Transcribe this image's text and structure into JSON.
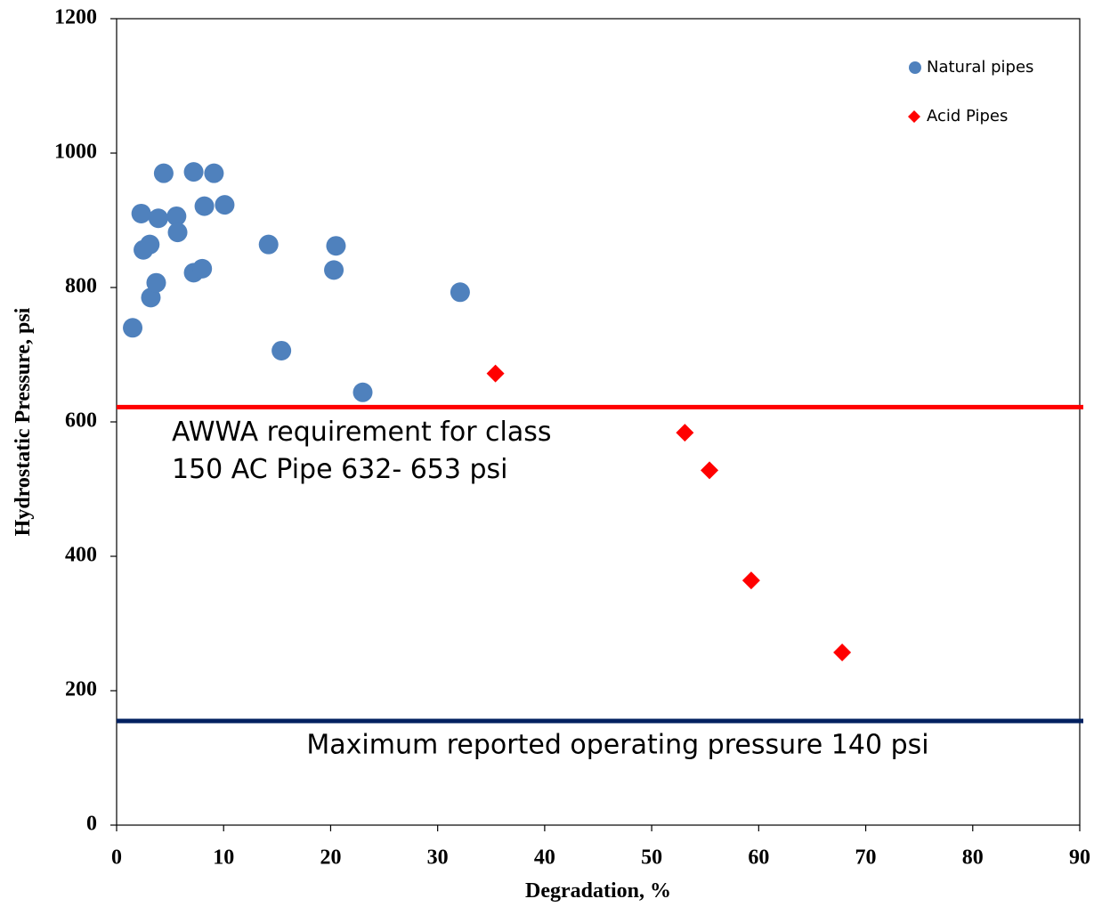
{
  "chart_data": {
    "type": "scatter",
    "x_label": "Degradation, %",
    "y_label": "Hydrostatic Pressure, psi",
    "xlim": [
      0,
      90
    ],
    "xticks": [
      0,
      10,
      20,
      30,
      40,
      50,
      60,
      70,
      80,
      90
    ],
    "ylim": [
      0,
      1200
    ],
    "yticks": [
      0,
      200,
      400,
      600,
      800,
      1000,
      1200
    ],
    "grid": false,
    "legend": "upper right",
    "series": [
      {
        "name": "Natural pipes",
        "color": "#4f81bd",
        "marker": "circle",
        "x": [
          1.5,
          2.3,
          2.5,
          3.1,
          3.2,
          3.7,
          3.9,
          4.4,
          5.6,
          5.7,
          7.2,
          7.2,
          8.0,
          8.2,
          9.1,
          10.1,
          14.2,
          15.4,
          20.3,
          20.5,
          23.0,
          32.1
        ],
        "values": [
          740,
          910,
          856,
          864,
          785,
          807,
          903,
          970,
          906,
          882,
          972,
          822,
          828,
          921,
          970,
          923,
          864,
          706,
          826,
          862,
          644,
          793
        ]
      },
      {
        "name": "Acid Pipes",
        "color": "#ff0000",
        "marker": "diamond",
        "x": [
          35.4,
          53.1,
          55.4,
          59.3,
          67.8
        ],
        "values": [
          672,
          584,
          528,
          364,
          257
        ]
      }
    ],
    "reference_lines": [
      {
        "value": 622,
        "color": "#ff0000",
        "text": [
          "AWWA requirement for class",
          "150 AC Pipe 632- 653 psi"
        ]
      },
      {
        "value": 155,
        "color": "#002060",
        "text": [
          "Maximum reported operating pressure 140 psi"
        ]
      }
    ]
  }
}
